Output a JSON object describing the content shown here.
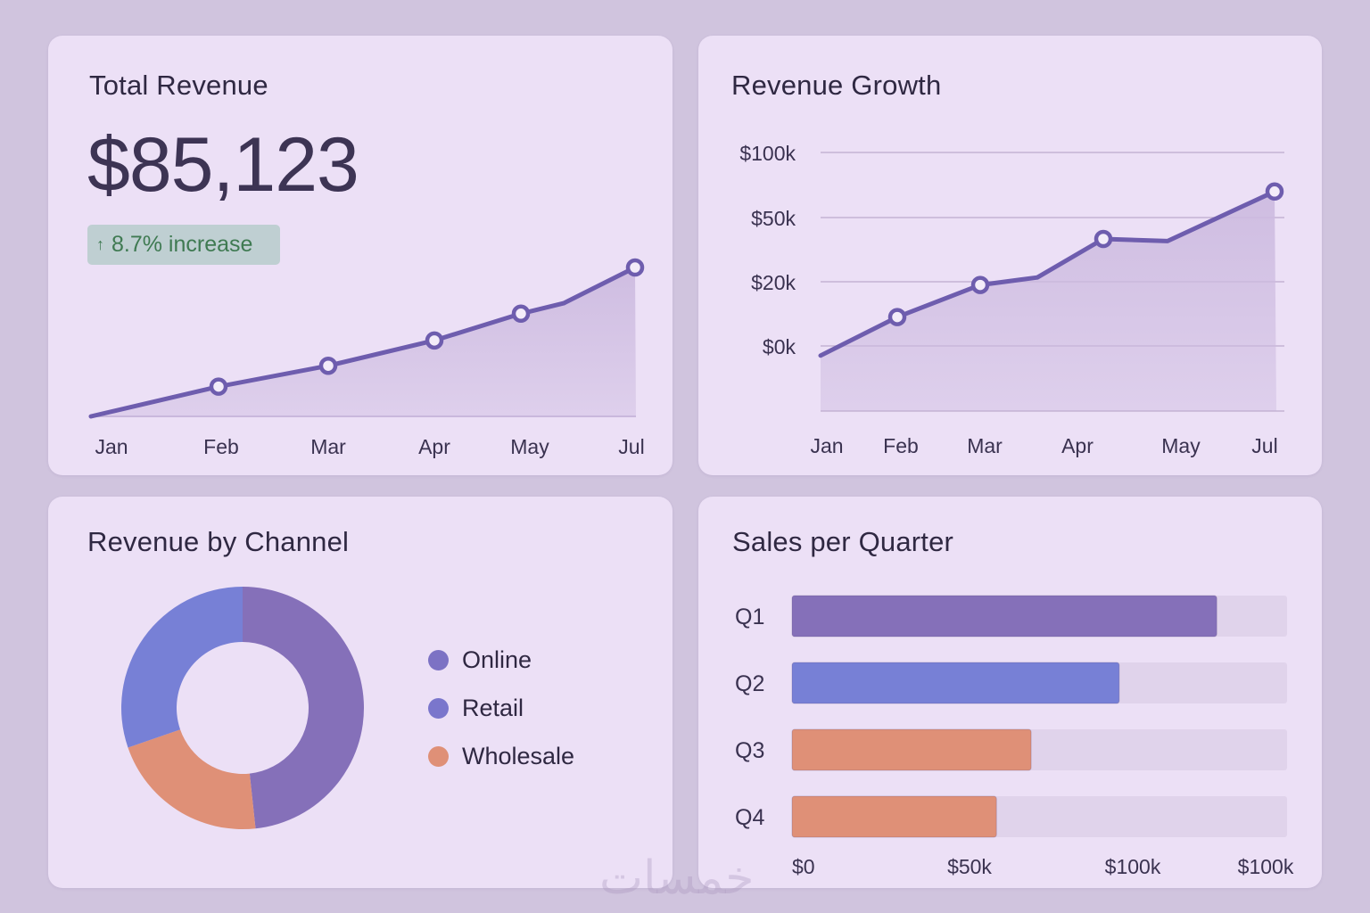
{
  "colors": {
    "page_bg": "#D0C4DE",
    "card_bg": "#ECE0F6",
    "line": "#6E5DAE",
    "area_fill": "#CDBBE0",
    "online": "#8570B9",
    "retail": "#7780D6",
    "wholesale": "#DF9077",
    "track": "#E0D3EB",
    "badge_bg": "#BFCFD2",
    "badge_text": "#3F7A52"
  },
  "total_revenue": {
    "title": "Total Revenue",
    "value": "$85,123",
    "change_icon": "arrow-up-icon",
    "change_arrow": "↑",
    "change_label": "8.7% increase"
  },
  "revenue_growth": {
    "title": "Revenue Growth"
  },
  "revenue_by_channel": {
    "title": "Revenue by Channel"
  },
  "sales_per_quarter": {
    "title": "Sales per Quarter"
  },
  "watermark": "خمسات",
  "chart_data": [
    {
      "id": "total-revenue-trend",
      "type": "area",
      "title": "Total Revenue",
      "xlabel": "",
      "ylabel": "",
      "x_tick_labels": [
        "Jan",
        "Feb",
        "Mar",
        "Apr",
        "May",
        "Jul"
      ],
      "points": [
        {
          "label": "Jan",
          "value": 0,
          "marker": false
        },
        {
          "label": "Feb",
          "value": 20,
          "marker": true
        },
        {
          "label": "Mar",
          "value": 34,
          "marker": true
        },
        {
          "label": "Apr",
          "value": 51,
          "marker": true
        },
        {
          "label": "May",
          "value": 69,
          "marker": true
        },
        {
          "label": "",
          "value": 76,
          "marker": false
        },
        {
          "label": "Jul",
          "value": 100,
          "marker": true
        }
      ],
      "value_units": "relative index (no y-axis shown)",
      "ylim": [
        0,
        100
      ],
      "grid": false
    },
    {
      "id": "revenue-growth",
      "type": "area",
      "title": "Revenue Growth",
      "xlabel": "",
      "ylabel": "",
      "x_tick_labels": [
        "Jan",
        "Feb",
        "Mar",
        "Apr",
        "May",
        "Jul"
      ],
      "y_tick_labels": [
        "$100k",
        "$50k",
        "$20k",
        "$0k"
      ],
      "y_tick_values": [
        100,
        50,
        20,
        0
      ],
      "points": [
        {
          "label": "Jan",
          "value": -3,
          "marker": false
        },
        {
          "label": "Feb",
          "value": 9,
          "marker": true
        },
        {
          "label": "Mar",
          "value": 19,
          "marker": true
        },
        {
          "label": "",
          "value": 22,
          "marker": false
        },
        {
          "label": "Apr",
          "value": 40,
          "marker": true
        },
        {
          "label": "May",
          "value": 39,
          "marker": false
        },
        {
          "label": "Jul",
          "value": 70,
          "marker": true
        }
      ],
      "value_units": "$k",
      "grid": true
    },
    {
      "id": "revenue-by-channel",
      "type": "pie",
      "variant": "donut",
      "title": "Revenue by Channel",
      "slices": [
        {
          "label": "Online",
          "percent": 48.3,
          "color": "#8570B9"
        },
        {
          "label": "Wholesale",
          "percent": 21.4,
          "color": "#DF9077"
        },
        {
          "label": "Retail",
          "percent": 30.3,
          "color": "#7780D6"
        }
      ],
      "legend": [
        {
          "label": "Online",
          "color": "#7C72C4"
        },
        {
          "label": "Retail",
          "color": "#7A76CC"
        },
        {
          "label": "Wholesale",
          "color": "#DF9077"
        }
      ],
      "legend_position": "right"
    },
    {
      "id": "sales-per-quarter",
      "type": "bar",
      "orientation": "horizontal",
      "title": "Sales per Quarter",
      "categories": [
        "Q1",
        "Q2",
        "Q3",
        "Q4"
      ],
      "fill_fraction_of_track": [
        0.858,
        0.661,
        0.483,
        0.413
      ],
      "bar_colors": [
        "#8570B9",
        "#7780D6",
        "#DF9077",
        "#DF9077"
      ],
      "x_tick_labels": [
        "$0",
        "$50k",
        "$100k",
        "$100k"
      ],
      "grid": false
    }
  ]
}
